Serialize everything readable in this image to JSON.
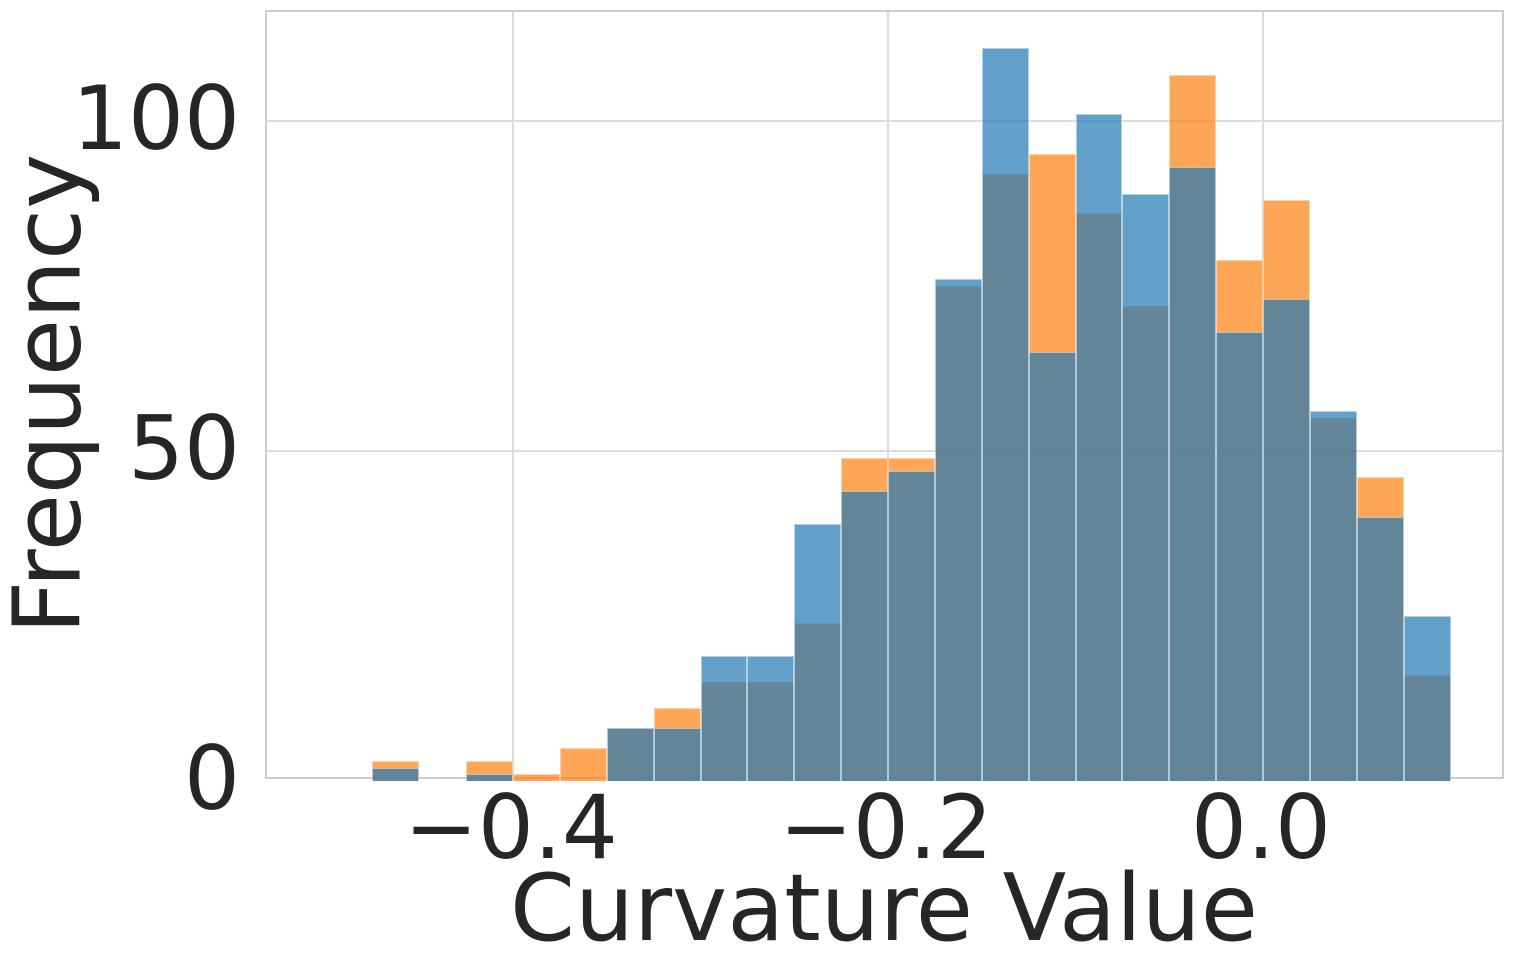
{
  "chart_data": {
    "type": "histogram",
    "title": "",
    "xlabel": "Curvature Value",
    "ylabel": "Frequency",
    "grid": true,
    "legend": "none",
    "xlim": [
      -0.5312,
      0.1296
    ],
    "ylim": [
      0,
      116.5
    ],
    "bin_start": -0.475,
    "bin_width": 0.025,
    "bin_count": 23,
    "series": [
      {
        "name": "orange-distribution",
        "base_color": "#ff7f0e",
        "alpha": 0.7,
        "rendered_fill": "#ffa556",
        "values": [
          3,
          0,
          3,
          1,
          5,
          8,
          11,
          15,
          15,
          24,
          49,
          49,
          75,
          92,
          95,
          86,
          72,
          107,
          79,
          88,
          55,
          46,
          16
        ]
      },
      {
        "name": "blue-distribution",
        "base_color": "#1f77b4",
        "alpha": 0.7,
        "rendered_fill": "#62a0ca",
        "values": [
          2,
          0,
          1,
          0,
          0,
          8,
          8,
          19,
          19,
          39,
          44,
          47,
          76,
          111,
          65,
          101,
          89,
          93,
          68,
          73,
          56,
          40,
          25
        ]
      }
    ],
    "overlap_rendered_color": "#628598",
    "x_ticks": [
      {
        "value": -0.4,
        "label": "−0.4"
      },
      {
        "value": -0.2,
        "label": "−0.2"
      },
      {
        "value": 0.0,
        "label": "0.0"
      }
    ],
    "y_ticks": [
      {
        "value": 0,
        "label": "0"
      },
      {
        "value": 50,
        "label": "50"
      },
      {
        "value": 100,
        "label": "100"
      }
    ],
    "style": {
      "grid_color": "#dcdcdc",
      "spine_color": "#cccccc",
      "text_color": "#262626",
      "background": "#ffffff"
    }
  }
}
